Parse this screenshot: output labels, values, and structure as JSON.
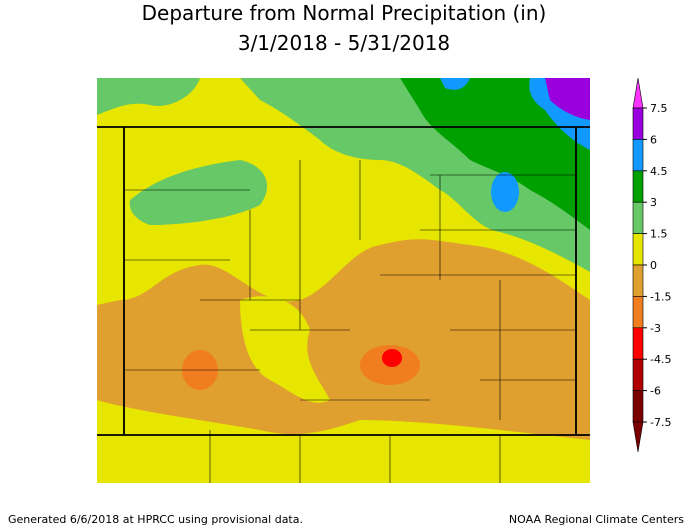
{
  "header": {
    "title": "Departure from Normal Precipitation (in)",
    "subtitle": "3/1/2018 - 5/31/2018"
  },
  "legend": {
    "ticks": [
      7.5,
      6,
      4.5,
      3,
      1.5,
      0,
      -1.5,
      -3,
      -4.5,
      -6,
      -7.5
    ],
    "colors": [
      "#ff33ff",
      "#9900dd",
      "#1199ff",
      "#00a000",
      "#66c866",
      "#e6e600",
      "#e0a030",
      "#f07d20",
      "#ff0000",
      "#b00000",
      "#7a0000"
    ]
  },
  "footer": {
    "left": "Generated 6/6/2018 at HPRCC using provisional data.",
    "right": "NOAA Regional Climate Centers"
  }
}
